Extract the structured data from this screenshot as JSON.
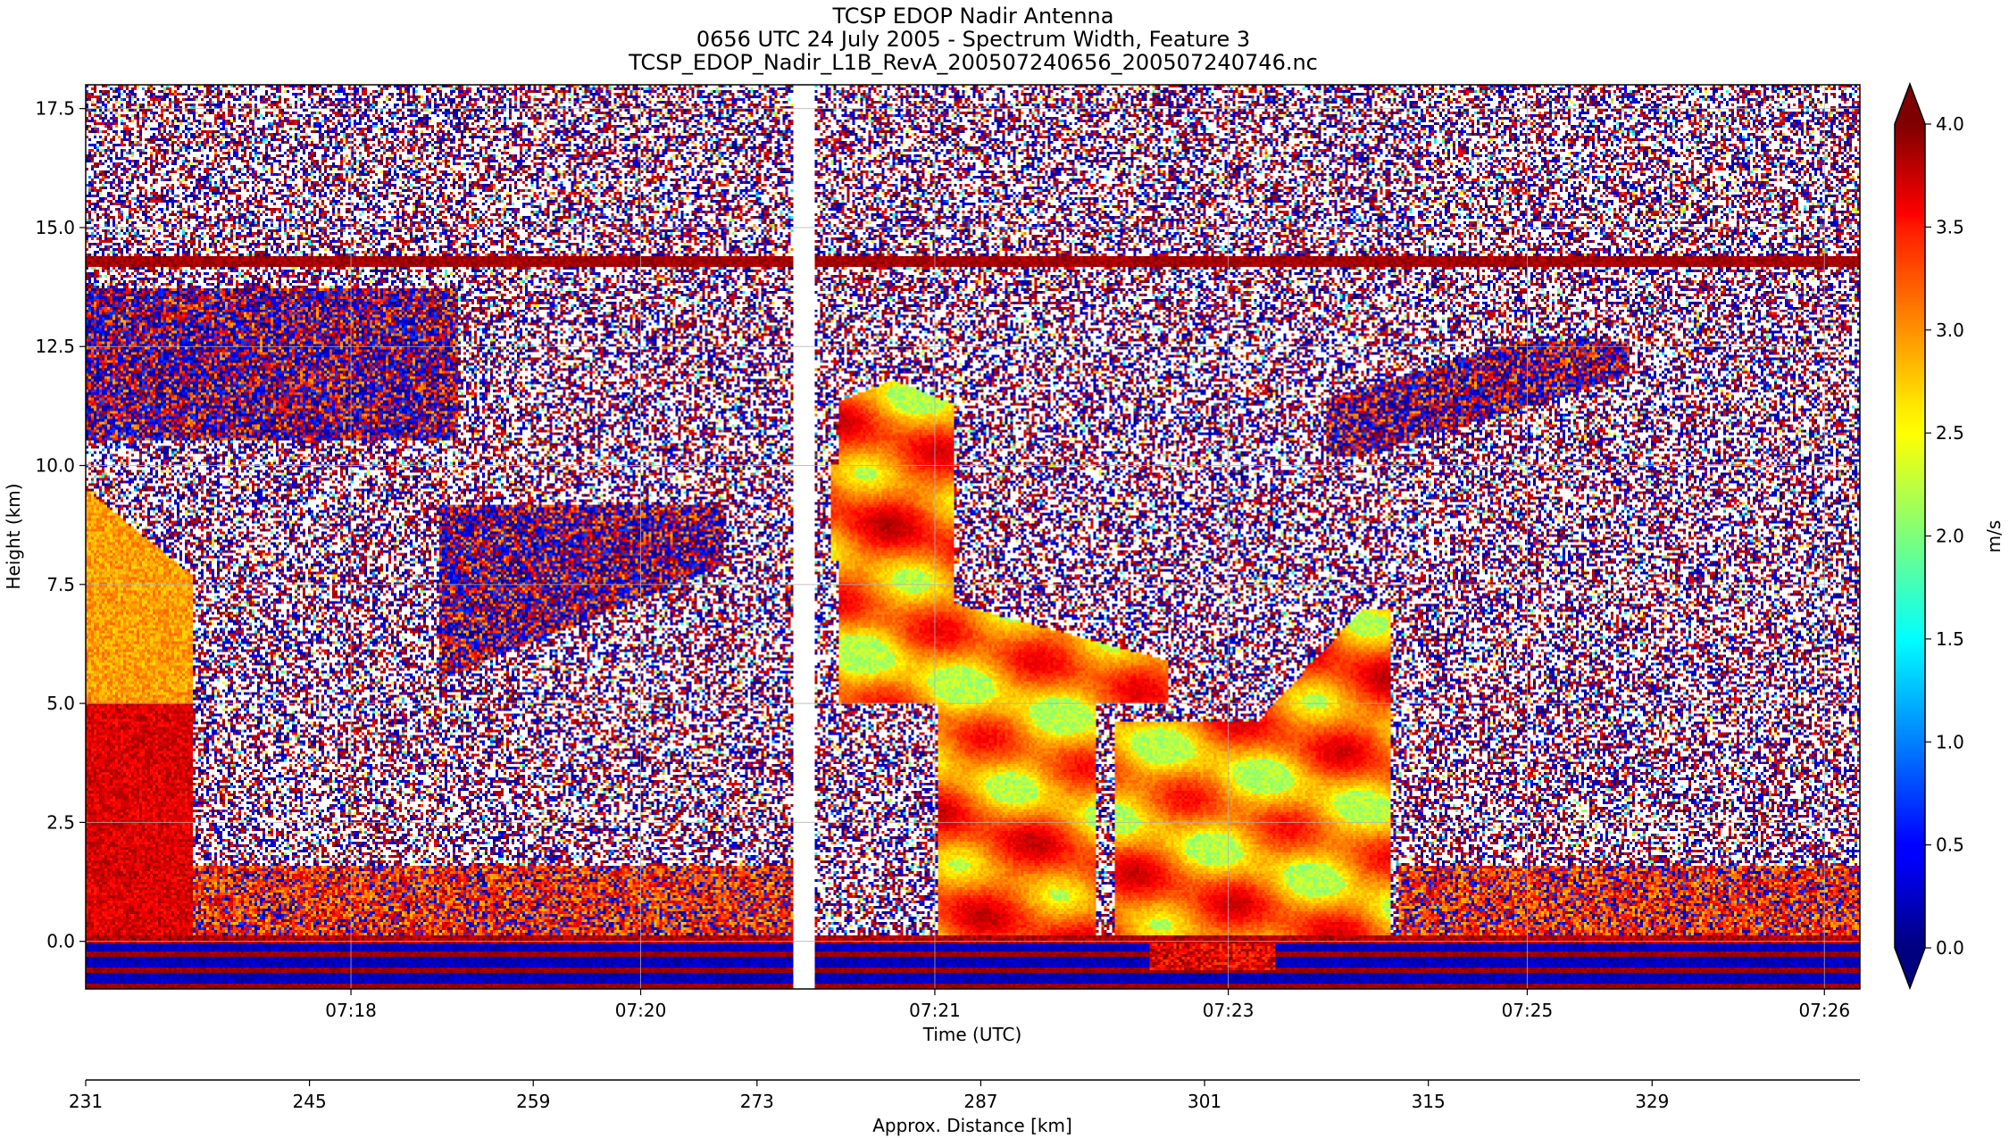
{
  "chart_data": {
    "type": "heatmap",
    "title_lines": [
      "TCSP EDOP Nadir Antenna",
      "0656 UTC 24 July 2005 - Spectrum Width, Feature 3",
      "TCSP_EDOP_Nadir_L1B_RevA_200507240656_200507240746.nc"
    ],
    "xlabel": "Time (UTC)",
    "ylabel": "Height (km)",
    "x_ticks": [
      "07:18",
      "07:20",
      "07:21",
      "07:23",
      "07:25",
      "07:26"
    ],
    "y_ticks": [
      "0.0",
      "2.5",
      "5.0",
      "7.5",
      "10.0",
      "12.5",
      "15.0",
      "17.5"
    ],
    "ylim": [
      -1.0,
      18.0
    ],
    "grid": true,
    "secondary_xlabel": "Approx. Distance [km]",
    "secondary_x_ticks": [
      "231",
      "245",
      "259",
      "273",
      "287",
      "301",
      "315",
      "329"
    ],
    "colorbar": {
      "label": "m/s",
      "ticks": [
        "0.0",
        "0.5",
        "1.0",
        "1.5",
        "2.0",
        "2.5",
        "3.0",
        "3.5",
        "4.0"
      ],
      "range": [
        0.0,
        4.0
      ],
      "colormap": "jet",
      "extend": "both"
    },
    "features": [
      {
        "name": "surface return band",
        "height_km": 0.0,
        "value": 4.0
      },
      {
        "name": "artifact line",
        "height_km": 14.3,
        "value": 4.0
      },
      {
        "name": "convective column",
        "time_range": [
          "07:21",
          "07:24"
        ],
        "height_range_km": [
          0.0,
          11.8
        ],
        "value_range": [
          2.5,
          3.8
        ]
      },
      {
        "name": "data gap",
        "time": "07:20:40"
      }
    ]
  }
}
